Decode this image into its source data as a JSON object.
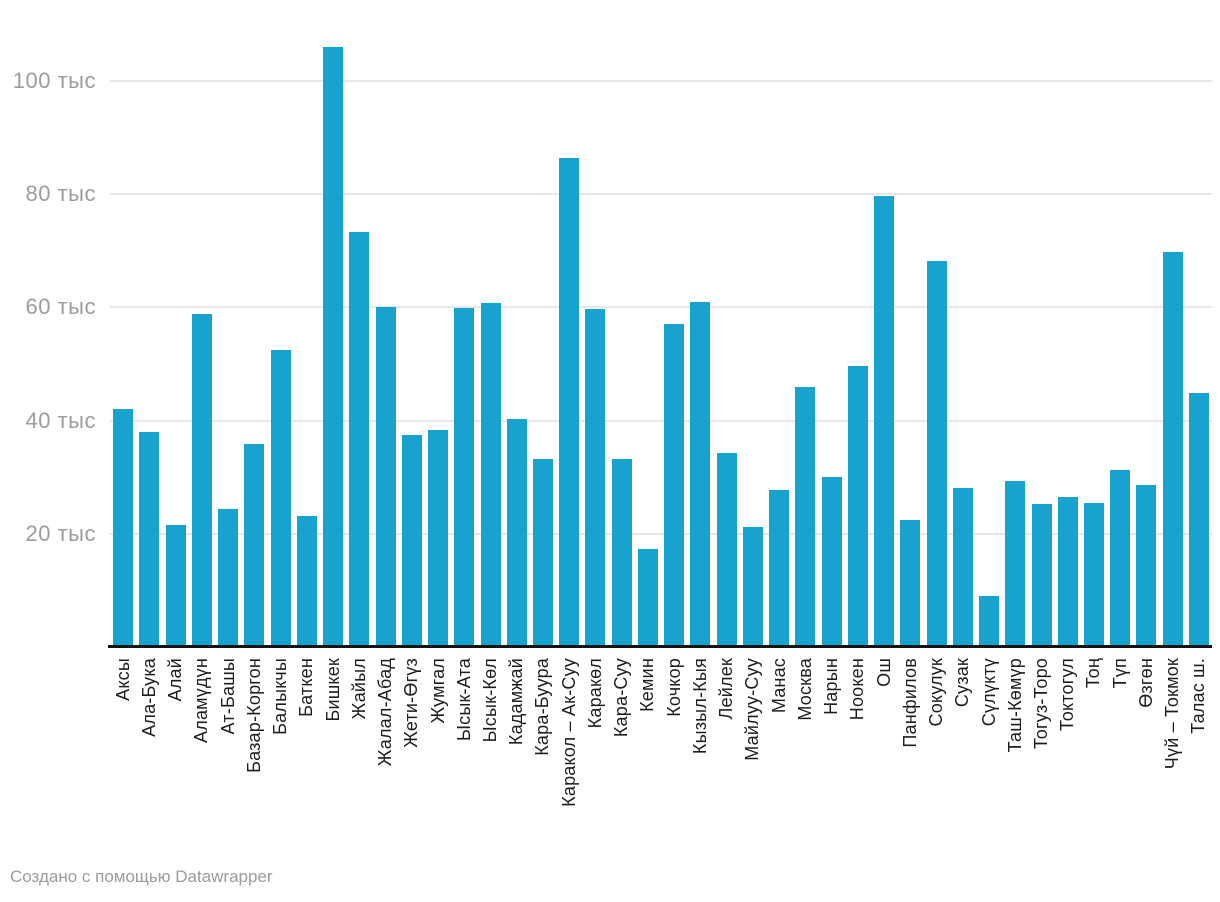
{
  "chart_data": {
    "type": "bar",
    "categories": [
      "Аксы",
      "Ала-Бука",
      "Алай",
      "Аламүдүн",
      "Ат-Башы",
      "Базар-Коргон",
      "Балыкчы",
      "Баткен",
      "Бишкек",
      "Жайыл",
      "Жалал-Абад",
      "Жети-Өгүз",
      "Жумгал",
      "Ысык-Ата",
      "Ысык-Көл",
      "Кадамжай",
      "Кара-Буура",
      "Каракол – Ак-Суу",
      "Каракөл",
      "Кара-Суу",
      "Кемин",
      "Кочкор",
      "Кызыл-Кыя",
      "Лейлек",
      "Майлуу-Суу",
      "Манас",
      "Москва",
      "Нарын",
      "Ноокен",
      "Ош",
      "Панфилов",
      "Сокулук",
      "Сузак",
      "Сүлүктү",
      "Таш-Көмүр",
      "Тогуз-Торо",
      "Токтогул",
      "Тоң",
      "Түп",
      "Өзгөн",
      "Чүй – Токмок",
      "Талас ш."
    ],
    "values": [
      42.0,
      38.0,
      21.5,
      58.9,
      24.4,
      35.8,
      52.5,
      23.1,
      106.0,
      73.3,
      60.1,
      37.4,
      38.3,
      59.9,
      60.8,
      40.2,
      33.3,
      86.4,
      59.7,
      33.3,
      17.4,
      57.0,
      60.9,
      34.2,
      21.2,
      27.8,
      45.9,
      30.1,
      49.6,
      79.7,
      22.5,
      68.2,
      28.1,
      9.0,
      29.4,
      25.2,
      26.5,
      25.5,
      31.2,
      28.7,
      69.8,
      44.9
    ],
    "value_unit": "тыс",
    "xlabel": "",
    "ylabel": "",
    "ylim": [
      0,
      107
    ],
    "yticks": [
      20,
      40,
      60,
      80,
      100
    ],
    "ytick_labels": [
      "20 тыс",
      "40 тыс",
      "60 тыс",
      "80 тыс",
      "100 тыс"
    ],
    "grid": true,
    "legend_position": "none"
  },
  "footer": {
    "attribution": "Создано с помощью Datawrapper"
  },
  "colors": {
    "bar": "#18a2ce",
    "grid": "#e7e7e7",
    "axis": "#141414",
    "y_tick_text": "#9c9c9c",
    "x_tick_text": "#1d1d1d",
    "footer_text": "#9b9b9b"
  }
}
